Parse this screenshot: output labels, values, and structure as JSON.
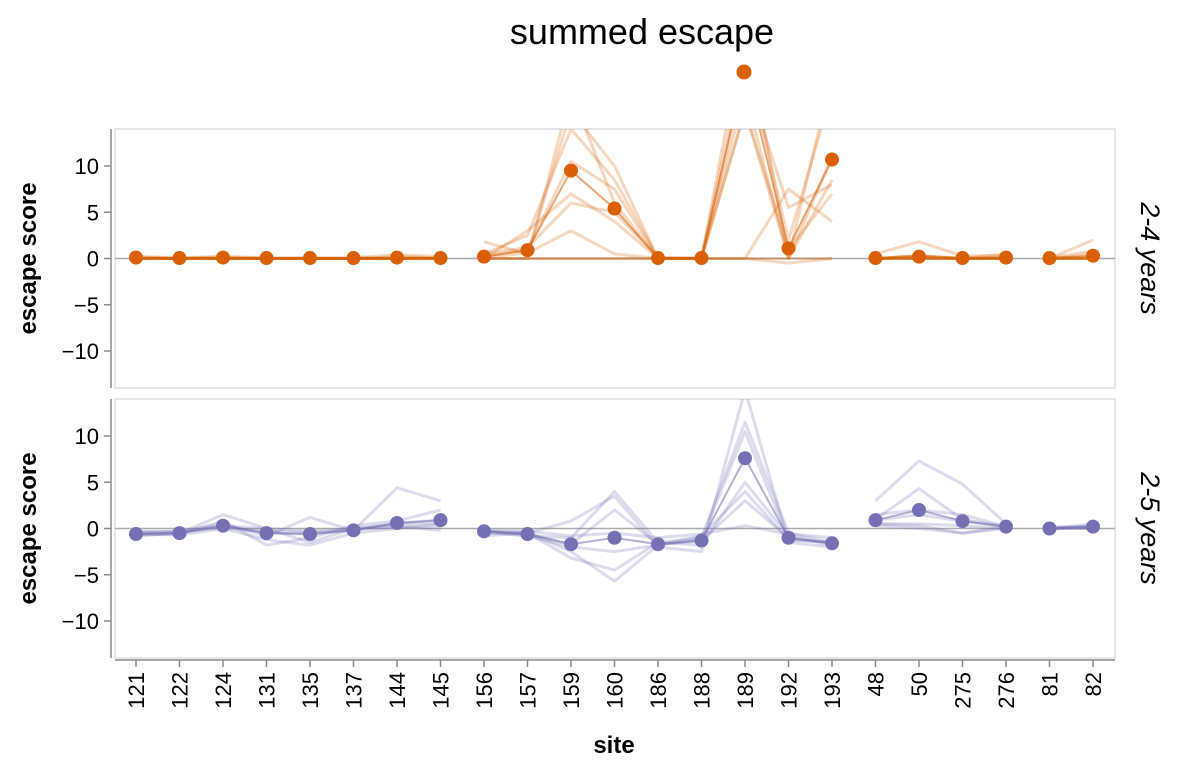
{
  "chart_data": {
    "type": "line",
    "legend": {
      "title": "summed escape",
      "placement": "top"
    },
    "x_axis": {
      "label": "site",
      "categories": [
        "121",
        "122",
        "124",
        "131",
        "135",
        "137",
        "144",
        "145",
        "156",
        "157",
        "159",
        "160",
        "186",
        "188",
        "189",
        "192",
        "193",
        "48",
        "50",
        "275",
        "276",
        "81",
        "82"
      ],
      "gaps_after": [
        "145",
        "193",
        "276"
      ]
    },
    "y_axis": {
      "label": "escape score",
      "ylim": [
        -14,
        14
      ],
      "ticks": [
        10,
        5,
        0,
        -5,
        -10
      ]
    },
    "grid": false,
    "facets": [
      {
        "label": "2-4 years",
        "color": "#d95f02",
        "summed": [
          0.1,
          0.05,
          0.1,
          0.05,
          0.05,
          0.05,
          0.1,
          0.05,
          0.2,
          0.9,
          9.5,
          5.4,
          0.05,
          0.05,
          20.5,
          1.1,
          10.7,
          0.05,
          0.2,
          0.05,
          0.1,
          0.05,
          0.3
        ],
        "lines": [
          [
            0.0,
            0.0,
            0.0,
            0.0,
            0.0,
            0.0,
            0.0,
            0.0,
            1.8,
            0.5,
            16.0,
            10.0,
            0.0,
            0.0,
            25.0,
            0.0,
            20.0,
            0.5,
            1.8,
            0.3,
            0.3,
            0.0,
            2.0
          ],
          [
            0.2,
            0.1,
            0.2,
            0.1,
            0.1,
            0.1,
            0.4,
            0.2,
            0.5,
            2.5,
            14.0,
            8.5,
            0.1,
            0.1,
            22.0,
            2.0,
            18.0,
            0.0,
            0.3,
            0.0,
            0.5,
            0.1,
            0.8
          ],
          [
            0.0,
            0.0,
            0.0,
            0.0,
            0.0,
            0.0,
            0.0,
            0.0,
            0.2,
            1.0,
            10.5,
            7.5,
            0.0,
            0.0,
            20.0,
            5.5,
            8.0,
            0.0,
            0.0,
            0.0,
            0.0,
            0.0,
            0.0
          ],
          [
            0.0,
            0.0,
            0.0,
            0.0,
            0.0,
            0.0,
            0.0,
            0.0,
            0.0,
            3.0,
            7.0,
            4.0,
            0.0,
            0.0,
            18.0,
            0.0,
            11.0,
            0.0,
            0.3,
            0.0,
            0.0,
            0.0,
            0.2
          ],
          [
            0.2,
            0.0,
            0.2,
            0.0,
            0.0,
            0.0,
            0.2,
            0.1,
            0.5,
            1.2,
            6.0,
            5.0,
            0.1,
            0.0,
            16.0,
            1.0,
            7.0,
            0.0,
            0.3,
            0.0,
            0.2,
            0.0,
            0.5
          ],
          [
            0.0,
            0.0,
            0.0,
            0.0,
            0.0,
            0.0,
            0.0,
            0.0,
            0.1,
            0.6,
            3.0,
            0.5,
            0.0,
            0.0,
            0.0,
            7.5,
            4.0,
            0.0,
            0.1,
            0.0,
            0.0,
            0.0,
            0.0
          ],
          [
            0.0,
            0.0,
            0.0,
            0.0,
            0.0,
            0.0,
            0.0,
            0.0,
            0.0,
            0.0,
            0.0,
            0.0,
            0.0,
            0.0,
            0.0,
            0.0,
            0.0,
            0.0,
            0.0,
            0.0,
            0.0,
            0.0,
            0.0
          ],
          [
            0.0,
            0.0,
            0.0,
            0.0,
            0.0,
            0.0,
            0.0,
            0.0,
            0.0,
            0.0,
            18.0,
            6.0,
            0.0,
            0.0,
            16.0,
            0.0,
            8.5,
            0.0,
            0.0,
            0.0,
            0.0,
            0.0,
            0.0
          ],
          [
            0.0,
            0.0,
            0.0,
            0.0,
            0.0,
            0.0,
            0.0,
            0.0,
            0.0,
            0.0,
            0.0,
            0.0,
            0.0,
            0.0,
            0.0,
            -0.5,
            0.0,
            0.0,
            0.0,
            0.0,
            0.0,
            0.0,
            0.0
          ]
        ]
      },
      {
        "label": "2-5 years",
        "color": "#7570b3",
        "summed": [
          -0.6,
          -0.5,
          0.3,
          -0.5,
          -0.6,
          -0.2,
          0.6,
          0.9,
          -0.3,
          -0.6,
          -1.7,
          -1.0,
          -1.7,
          -1.3,
          7.6,
          -1.0,
          -1.6,
          0.9,
          2.0,
          0.8,
          0.2,
          0.0,
          0.2
        ],
        "lines": [
          [
            -0.8,
            -0.5,
            1.5,
            0.0,
            -1.5,
            0.0,
            0.5,
            0.5,
            -0.5,
            -0.5,
            0.8,
            3.5,
            -2.0,
            -2.5,
            15.0,
            -1.5,
            -2.0,
            3.0,
            7.3,
            4.8,
            0.5,
            0.0,
            0.5
          ],
          [
            -0.5,
            -0.3,
            0.5,
            -0.8,
            1.2,
            -0.2,
            4.4,
            3.0,
            -0.2,
            -0.8,
            -1.0,
            4.0,
            -1.5,
            -1.0,
            11.5,
            -0.5,
            -1.5,
            1.0,
            4.3,
            1.0,
            0.2,
            0.0,
            0.3
          ],
          [
            -0.7,
            -0.6,
            0.8,
            -1.8,
            -1.0,
            0.3,
            0.8,
            2.0,
            -0.3,
            -0.4,
            -2.5,
            -5.7,
            -1.8,
            -1.2,
            10.5,
            -1.2,
            -1.5,
            1.5,
            2.0,
            1.5,
            0.2,
            0.0,
            0.2
          ],
          [
            -0.6,
            -0.7,
            0.0,
            -1.2,
            -1.8,
            -0.5,
            0.0,
            0.5,
            -0.8,
            -0.5,
            -3.2,
            -4.5,
            -1.5,
            -1.8,
            5.0,
            -0.8,
            -1.8,
            0.5,
            0.3,
            -0.5,
            0.2,
            0.2,
            0.1
          ],
          [
            -0.3,
            -0.4,
            0.3,
            0.0,
            -0.3,
            0.0,
            0.2,
            -0.2,
            -0.4,
            -0.8,
            -2.0,
            -2.5,
            -1.8,
            -0.8,
            4.0,
            -1.2,
            -1.5,
            0.5,
            0.5,
            0.3,
            0.0,
            0.0,
            0.0
          ],
          [
            -0.6,
            -0.5,
            0.3,
            -0.5,
            -0.6,
            -0.2,
            0.6,
            0.9,
            -0.3,
            -0.6,
            -1.7,
            2.0,
            -1.7,
            -1.3,
            3.0,
            -1.0,
            -1.6,
            0.9,
            1.5,
            0.8,
            0.2,
            0.0,
            0.2
          ],
          [
            -0.4,
            -0.3,
            0.0,
            -0.3,
            -0.4,
            -0.1,
            0.2,
            0.1,
            -0.2,
            -0.3,
            -0.8,
            -0.5,
            -1.0,
            -0.6,
            0.3,
            -0.6,
            -1.0,
            0.3,
            0.0,
            -0.5,
            0.0,
            0.0,
            0.0
          ]
        ]
      }
    ]
  }
}
